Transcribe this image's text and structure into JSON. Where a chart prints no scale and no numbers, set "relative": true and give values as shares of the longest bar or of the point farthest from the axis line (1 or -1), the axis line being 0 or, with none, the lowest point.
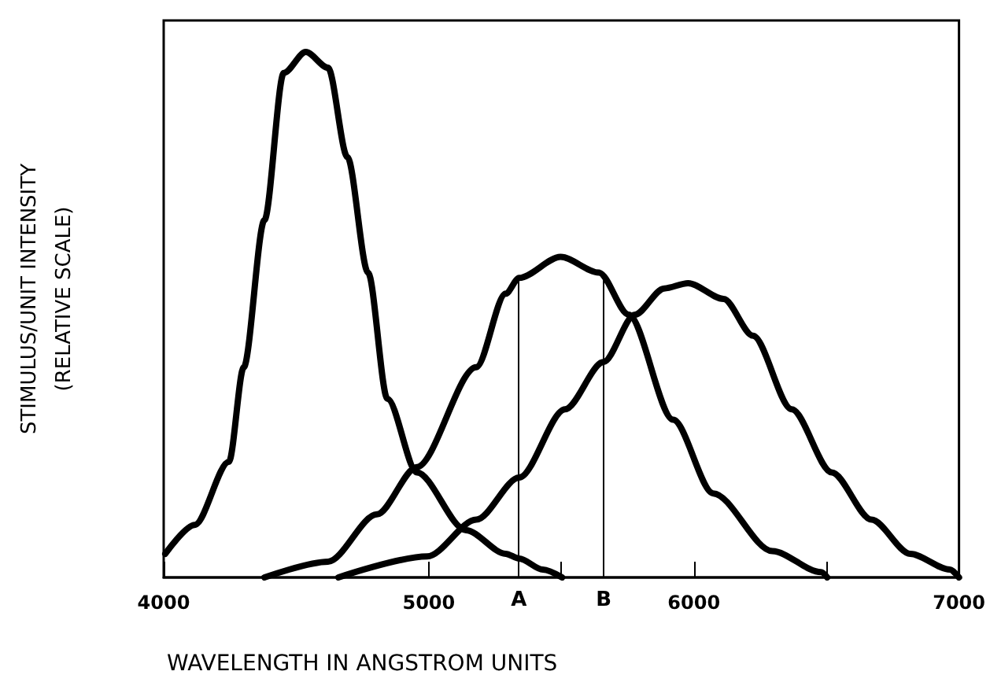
{
  "chart_data": {
    "type": "line",
    "relative": true,
    "xlabel": "WAVELENGTH IN ANGSTROM UNITS",
    "ylabel": "STIMULUS/UNIT INTENSITY\n(RELATIVE SCALE)",
    "xlim": [
      4000,
      7000
    ],
    "xticks": [
      4000,
      5000,
      {
        "value": 5500,
        "label": null
      },
      6000,
      {
        "value": 6500,
        "label": null
      },
      7000
    ],
    "marker": "none",
    "line_style": "solid",
    "series": [
      {
        "color": "#000000",
        "x": [
          4006,
          4117,
          4246,
          4302,
          4380,
          4453,
          4536,
          4620,
          4693,
          4771,
          4844,
          4955,
          5140,
          5290,
          5341,
          5430,
          5503
        ],
        "values": [
          0.045,
          0.1,
          0.22,
          0.4,
          0.68,
          0.96,
          1,
          0.97,
          0.8,
          0.58,
          0.34,
          0.2,
          0.09,
          0.045,
          0.036,
          0.015,
          0
        ]
      },
      {
        "color": "#000000",
        "x": [
          4380,
          4620,
          4804,
          4955,
          5179,
          5290,
          5341,
          5497,
          5642,
          5754,
          5922,
          6073,
          6296,
          6480,
          6503
        ],
        "values": [
          0,
          0.03,
          0.12,
          0.21,
          0.4,
          0.54,
          0.57,
          0.61,
          0.58,
          0.5,
          0.3,
          0.16,
          0.05,
          0.01,
          0
        ]
      },
      {
        "color": "#000000",
        "x": [
          4659,
          4994,
          5179,
          5341,
          5514,
          5659,
          5777,
          5888,
          5978,
          6112,
          6223,
          6369,
          6520,
          6670,
          6816,
          6966,
          7000
        ],
        "values": [
          0,
          0.04,
          0.11,
          0.19,
          0.32,
          0.41,
          0.5,
          0.55,
          0.56,
          0.53,
          0.46,
          0.32,
          0.2,
          0.11,
          0.045,
          0.015,
          0
        ]
      }
    ],
    "ref_lines": [
      {
        "axis": "x",
        "value": 5340,
        "label": "A",
        "color": "#000000"
      },
      {
        "axis": "x",
        "value": 5660,
        "label": "B",
        "color": "#000000"
      }
    ]
  }
}
